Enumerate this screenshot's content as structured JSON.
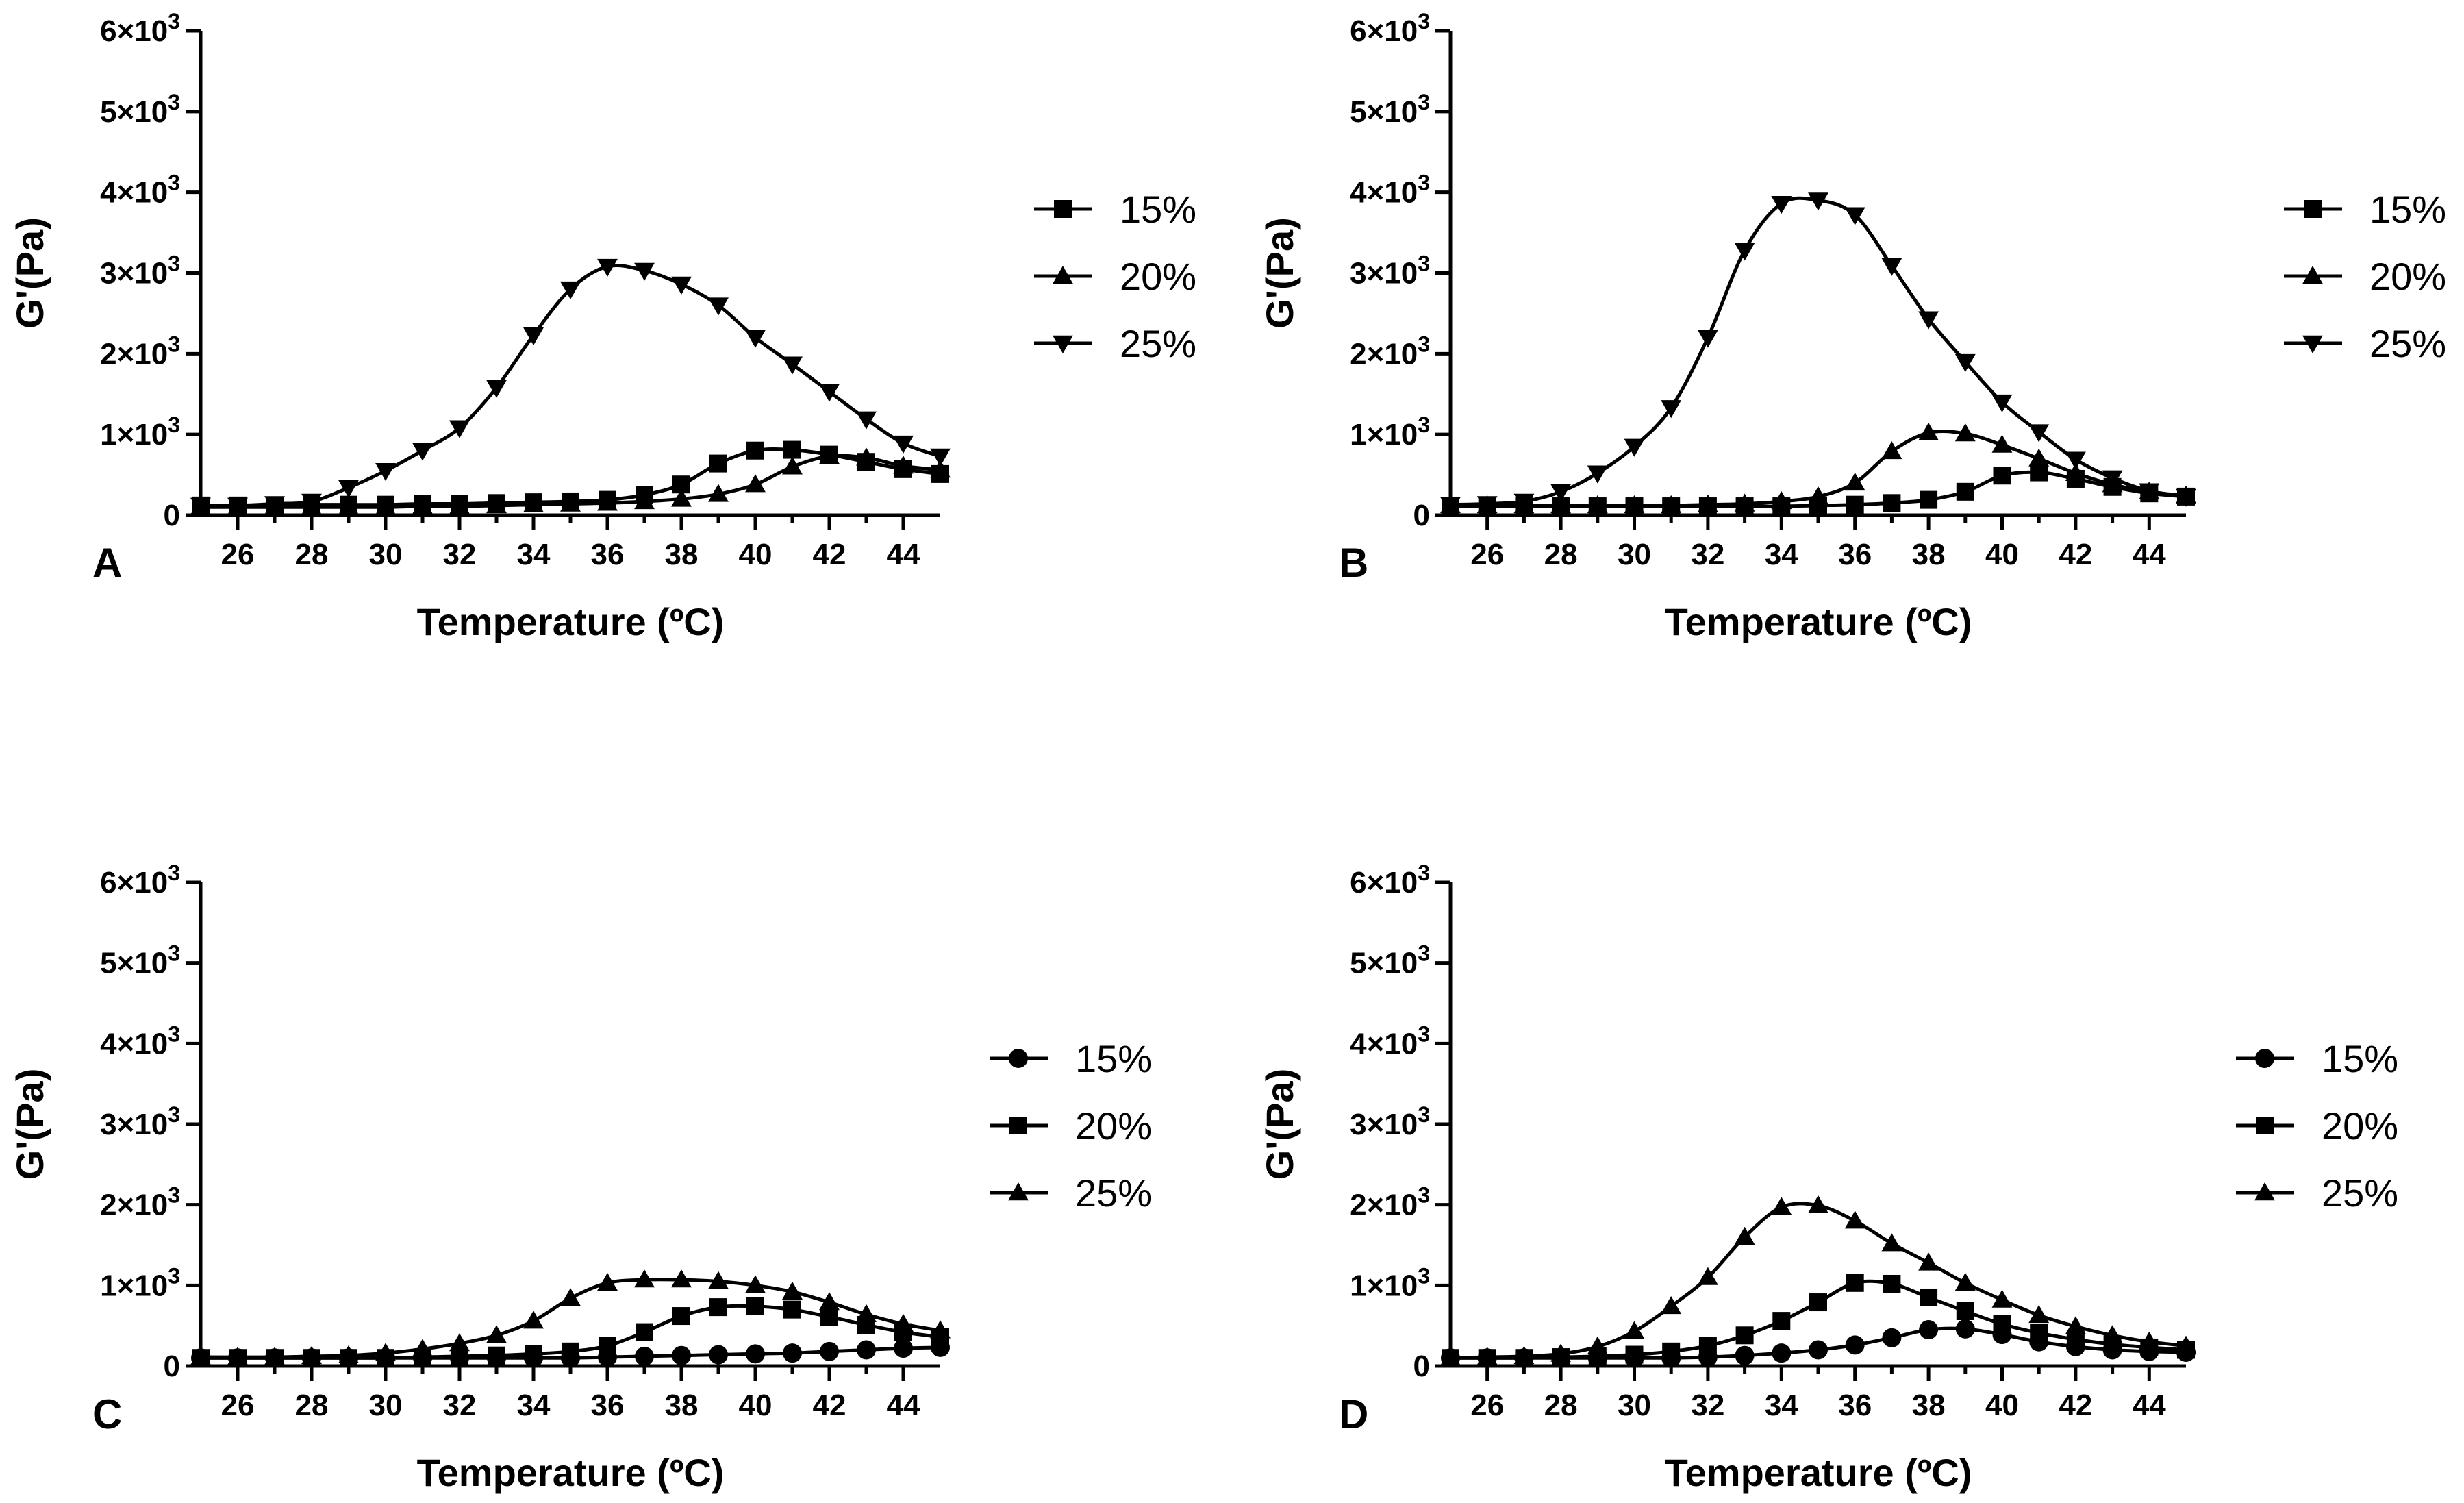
{
  "chart_data": [
    {
      "type": "line",
      "panel_label": "A",
      "xlabel": "Temperature (ºC)",
      "ylabel": "G'(Pa)",
      "xlim": [
        25,
        45
      ],
      "ylim": [
        0,
        6000
      ],
      "x_ticks": [
        26,
        28,
        30,
        32,
        34,
        36,
        38,
        40,
        42,
        44
      ],
      "y_ticks": [
        {
          "value": 0,
          "label": "0"
        },
        {
          "value": 1000,
          "label": "1×10",
          "exp": "3"
        },
        {
          "value": 2000,
          "label": "2×10",
          "exp": "3"
        },
        {
          "value": 3000,
          "label": "3×10",
          "exp": "3"
        },
        {
          "value": 4000,
          "label": "4×10",
          "exp": "3"
        },
        {
          "value": 5000,
          "label": "5×10",
          "exp": "3"
        },
        {
          "value": 6000,
          "label": "6×10",
          "exp": "3"
        }
      ],
      "x": [
        25,
        26,
        27,
        28,
        29,
        30,
        31,
        32,
        33,
        34,
        35,
        36,
        37,
        38,
        39,
        40,
        41,
        42,
        43,
        44,
        45
      ],
      "series": [
        {
          "name": "15%",
          "marker": "square",
          "values": [
            120,
            120,
            120,
            130,
            130,
            130,
            140,
            140,
            150,
            160,
            170,
            190,
            250,
            380,
            640,
            800,
            810,
            750,
            660,
            570,
            510
          ]
        },
        {
          "name": "20%",
          "marker": "triangle-up",
          "values": [
            100,
            100,
            100,
            100,
            100,
            100,
            110,
            110,
            120,
            130,
            140,
            150,
            170,
            200,
            260,
            380,
            600,
            730,
            710,
            610,
            560
          ]
        },
        {
          "name": "25%",
          "marker": "triangle-down",
          "values": [
            120,
            120,
            140,
            170,
            340,
            550,
            800,
            1080,
            1580,
            2230,
            2800,
            3080,
            3030,
            2860,
            2600,
            2200,
            1870,
            1530,
            1190,
            890,
            730
          ]
        }
      ]
    },
    {
      "type": "line",
      "panel_label": "B",
      "xlabel": "Temperature (ºC)",
      "ylabel": "G'(Pa)",
      "xlim": [
        25,
        45
      ],
      "ylim": [
        0,
        6000
      ],
      "x_ticks": [
        26,
        28,
        30,
        32,
        34,
        36,
        38,
        40,
        42,
        44
      ],
      "y_ticks": [
        {
          "value": 0,
          "label": "0"
        },
        {
          "value": 1000,
          "label": "1×10",
          "exp": "3"
        },
        {
          "value": 2000,
          "label": "2×10",
          "exp": "3"
        },
        {
          "value": 3000,
          "label": "3×10",
          "exp": "3"
        },
        {
          "value": 4000,
          "label": "4×10",
          "exp": "3"
        },
        {
          "value": 5000,
          "label": "5×10",
          "exp": "3"
        },
        {
          "value": 6000,
          "label": "6×10",
          "exp": "3"
        }
      ],
      "x": [
        25,
        26,
        27,
        28,
        29,
        30,
        31,
        32,
        33,
        34,
        35,
        36,
        37,
        38,
        39,
        40,
        41,
        42,
        43,
        44,
        45
      ],
      "series": [
        {
          "name": "15%",
          "marker": "square",
          "values": [
            110,
            110,
            110,
            110,
            110,
            110,
            110,
            110,
            110,
            110,
            120,
            130,
            150,
            190,
            290,
            490,
            530,
            450,
            350,
            270,
            230
          ]
        },
        {
          "name": "20%",
          "marker": "triangle-up",
          "values": [
            120,
            120,
            120,
            120,
            120,
            120,
            120,
            130,
            140,
            170,
            230,
            400,
            790,
            1020,
            1010,
            870,
            700,
            520,
            380,
            290,
            240
          ]
        },
        {
          "name": "25%",
          "marker": "triangle-down",
          "values": [
            130,
            140,
            170,
            290,
            520,
            850,
            1330,
            2200,
            3280,
            3860,
            3900,
            3720,
            3090,
            2430,
            1900,
            1400,
            1030,
            690,
            460,
            300,
            230
          ]
        }
      ]
    },
    {
      "type": "line",
      "panel_label": "C",
      "xlabel": "Temperature (ºC)",
      "ylabel": "G'(Pa)",
      "xlim": [
        25,
        45
      ],
      "ylim": [
        0,
        6000
      ],
      "x_ticks": [
        26,
        28,
        30,
        32,
        34,
        36,
        38,
        40,
        42,
        44
      ],
      "y_ticks": [
        {
          "value": 0,
          "label": "0"
        },
        {
          "value": 1000,
          "label": "1×10",
          "exp": "3"
        },
        {
          "value": 2000,
          "label": "2×10",
          "exp": "3"
        },
        {
          "value": 3000,
          "label": "3×10",
          "exp": "3"
        },
        {
          "value": 4000,
          "label": "4×10",
          "exp": "3"
        },
        {
          "value": 5000,
          "label": "5×10",
          "exp": "3"
        },
        {
          "value": 6000,
          "label": "6×10",
          "exp": "3"
        }
      ],
      "x": [
        25,
        26,
        27,
        28,
        29,
        30,
        31,
        32,
        33,
        34,
        35,
        36,
        37,
        38,
        39,
        40,
        41,
        42,
        43,
        44,
        45
      ],
      "series": [
        {
          "name": "15%",
          "marker": "circle",
          "values": [
            100,
            100,
            100,
            100,
            100,
            100,
            100,
            100,
            100,
            100,
            100,
            110,
            120,
            130,
            140,
            150,
            160,
            180,
            200,
            220,
            230
          ]
        },
        {
          "name": "20%",
          "marker": "square",
          "values": [
            100,
            100,
            100,
            100,
            100,
            100,
            110,
            120,
            130,
            150,
            180,
            250,
            420,
            620,
            730,
            740,
            700,
            610,
            510,
            420,
            360
          ]
        },
        {
          "name": "25%",
          "marker": "triangle-up",
          "values": [
            110,
            110,
            110,
            120,
            130,
            160,
            210,
            280,
            380,
            560,
            840,
            1030,
            1070,
            1070,
            1050,
            1000,
            920,
            790,
            640,
            520,
            440
          ]
        }
      ]
    },
    {
      "type": "line",
      "panel_label": "D",
      "xlabel": "Temperature (ºC)",
      "ylabel": "G'(Pa)",
      "xlim": [
        25,
        45
      ],
      "ylim": [
        0,
        6000
      ],
      "x_ticks": [
        26,
        28,
        30,
        32,
        34,
        36,
        38,
        40,
        42,
        44
      ],
      "y_ticks": [
        {
          "value": 0,
          "label": "0"
        },
        {
          "value": 1000,
          "label": "1×10",
          "exp": "3"
        },
        {
          "value": 2000,
          "label": "2×10",
          "exp": "3"
        },
        {
          "value": 3000,
          "label": "3×10",
          "exp": "3"
        },
        {
          "value": 4000,
          "label": "4×10",
          "exp": "3"
        },
        {
          "value": 5000,
          "label": "5×10",
          "exp": "3"
        },
        {
          "value": 6000,
          "label": "6×10",
          "exp": "3"
        }
      ],
      "x": [
        25,
        26,
        27,
        28,
        29,
        30,
        31,
        32,
        33,
        34,
        35,
        36,
        37,
        38,
        39,
        40,
        41,
        42,
        43,
        44,
        45
      ],
      "series": [
        {
          "name": "15%",
          "marker": "circle",
          "values": [
            100,
            100,
            100,
            100,
            100,
            100,
            100,
            110,
            130,
            160,
            200,
            260,
            350,
            450,
            460,
            390,
            300,
            240,
            200,
            180,
            170
          ]
        },
        {
          "name": "20%",
          "marker": "square",
          "values": [
            100,
            100,
            100,
            110,
            120,
            140,
            180,
            250,
            380,
            560,
            790,
            1030,
            1020,
            850,
            680,
            520,
            410,
            330,
            270,
            230,
            200
          ]
        },
        {
          "name": "25%",
          "marker": "triangle-up",
          "values": [
            100,
            110,
            120,
            150,
            240,
            430,
            740,
            1100,
            1600,
            1970,
            1990,
            1800,
            1520,
            1280,
            1030,
            820,
            630,
            490,
            380,
            300,
            250
          ]
        }
      ]
    }
  ]
}
